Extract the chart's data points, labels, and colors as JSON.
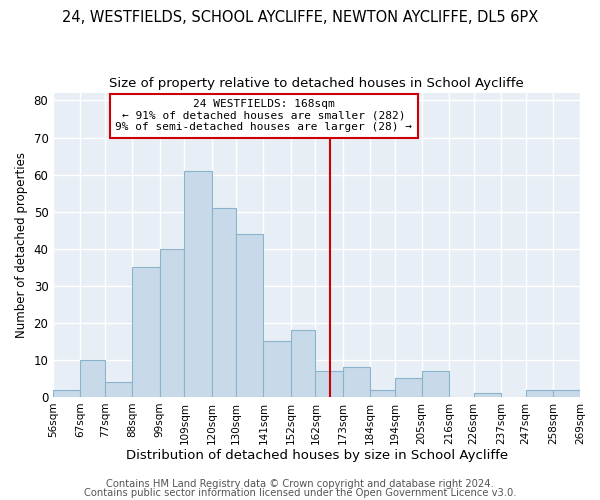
{
  "title1": "24, WESTFIELDS, SCHOOL AYCLIFFE, NEWTON AYCLIFFE, DL5 6PX",
  "title2": "Size of property relative to detached houses in School Aycliffe",
  "xlabel": "Distribution of detached houses by size in School Aycliffe",
  "ylabel": "Number of detached properties",
  "bar_edges": [
    56,
    67,
    77,
    88,
    99,
    109,
    120,
    130,
    141,
    152,
    162,
    173,
    184,
    194,
    205,
    216,
    226,
    237,
    247,
    258,
    269
  ],
  "bar_heights": [
    2,
    10,
    4,
    35,
    40,
    61,
    51,
    44,
    15,
    18,
    7,
    8,
    2,
    5,
    7,
    0,
    1,
    0,
    2,
    2
  ],
  "bar_color": "#c8daea",
  "bar_edge_color": "#8ab4cc",
  "vline_x": 168,
  "vline_color": "#cc0000",
  "annotation_title": "24 WESTFIELDS: 168sqm",
  "annotation_line1": "← 91% of detached houses are smaller (282)",
  "annotation_line2": "9% of semi-detached houses are larger (28) →",
  "annotation_box_color": "#cc0000",
  "annotation_box_fill": "#ffffff",
  "tick_labels": [
    "56sqm",
    "67sqm",
    "77sqm",
    "88sqm",
    "99sqm",
    "109sqm",
    "120sqm",
    "130sqm",
    "141sqm",
    "152sqm",
    "162sqm",
    "173sqm",
    "184sqm",
    "194sqm",
    "205sqm",
    "216sqm",
    "226sqm",
    "237sqm",
    "247sqm",
    "258sqm",
    "269sqm"
  ],
  "yticks": [
    0,
    10,
    20,
    30,
    40,
    50,
    60,
    70,
    80
  ],
  "ylim": [
    0,
    82
  ],
  "footer1": "Contains HM Land Registry data © Crown copyright and database right 2024.",
  "footer2": "Contains public sector information licensed under the Open Government Licence v3.0.",
  "bg_color": "#ffffff",
  "plot_bg_color": "#e8eef5",
  "grid_color": "#ffffff",
  "title1_fontsize": 10.5,
  "title2_fontsize": 9.5,
  "xlabel_fontsize": 9.5,
  "ylabel_fontsize": 8.5,
  "tick_fontsize": 7.5,
  "footer_fontsize": 7.2
}
